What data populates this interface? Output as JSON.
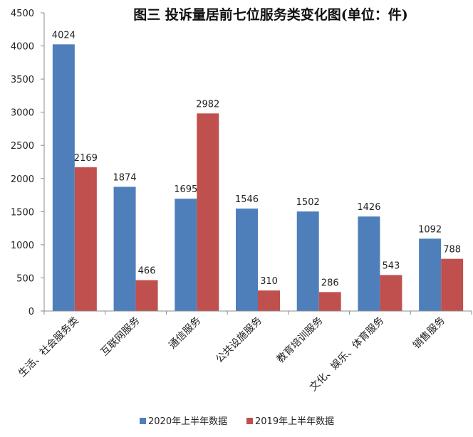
{
  "chart_data": {
    "type": "bar",
    "title": "图三   投诉量居前七位服务类变化图(单位：件)",
    "categories": [
      "生活、社会服务类",
      "互联网服务",
      "通信服务",
      "公共设施服务",
      "教育培训服务",
      "文化、娱乐、体育服务",
      "销售服务"
    ],
    "series": [
      {
        "name": "2020年上半年数据",
        "color": "#4f7fbb",
        "values": [
          4024,
          1874,
          1695,
          1546,
          1502,
          1426,
          1092
        ]
      },
      {
        "name": "2019年上半年数据",
        "color": "#c0504d",
        "values": [
          2169,
          466,
          2982,
          310,
          286,
          543,
          788
        ]
      }
    ],
    "ylim": [
      0,
      4500
    ],
    "yticks": [
      0,
      500,
      1000,
      1500,
      2000,
      2500,
      3000,
      3500,
      4000,
      4500
    ],
    "xlabel": "",
    "ylabel": "",
    "grid": false,
    "legend": "bottom"
  }
}
